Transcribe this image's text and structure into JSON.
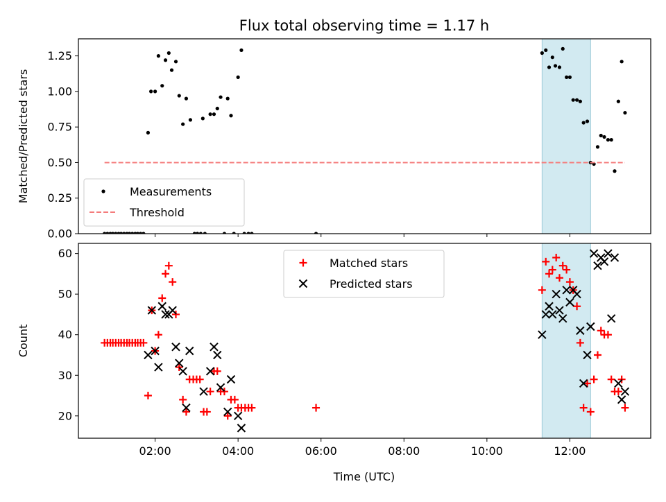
{
  "figure": {
    "title": "Flux total observing time = 1.17 h",
    "x_axis_label": "Time (UTC)"
  },
  "chart_data": [
    {
      "type": "scatter",
      "panel": "top",
      "ylabel": "Matched/Predicted stars",
      "xlim": [
        0.15,
        13.95
      ],
      "ylim": [
        0,
        1.37
      ],
      "yticks": [
        "0.00",
        "0.25",
        "0.50",
        "0.75",
        "1.00",
        "1.25"
      ],
      "xticks": [
        2,
        4,
        6,
        8,
        10,
        12
      ],
      "shaded_interval": [
        11.33,
        12.5
      ],
      "legend": {
        "placement": "lower-left",
        "items": [
          "Measurements",
          "Threshold"
        ]
      },
      "series": [
        {
          "name": "Measurements",
          "marker": "dot",
          "color": "#000000",
          "points": [
            [
              0.78,
              0
            ],
            [
              0.85,
              0
            ],
            [
              0.92,
              0
            ],
            [
              0.98,
              0
            ],
            [
              1.05,
              0
            ],
            [
              1.12,
              0
            ],
            [
              1.18,
              0
            ],
            [
              1.25,
              0
            ],
            [
              1.32,
              0
            ],
            [
              1.38,
              0
            ],
            [
              1.45,
              0
            ],
            [
              1.52,
              0
            ],
            [
              1.58,
              0
            ],
            [
              1.65,
              0
            ],
            [
              1.72,
              0
            ],
            [
              1.83,
              0.71
            ],
            [
              1.9,
              1.0
            ],
            [
              2.0,
              1.0
            ],
            [
              2.08,
              1.25
            ],
            [
              2.17,
              1.04
            ],
            [
              2.25,
              1.22
            ],
            [
              2.33,
              1.27
            ],
            [
              2.4,
              1.15
            ],
            [
              2.5,
              1.21
            ],
            [
              2.58,
              0.97
            ],
            [
              2.67,
              0.77
            ],
            [
              2.75,
              0.95
            ],
            [
              2.85,
              0.8
            ],
            [
              2.95,
              0
            ],
            [
              3.02,
              0
            ],
            [
              3.1,
              0
            ],
            [
              3.2,
              0
            ],
            [
              3.15,
              0.81
            ],
            [
              3.33,
              0.84
            ],
            [
              3.42,
              0.84
            ],
            [
              3.5,
              0.88
            ],
            [
              3.58,
              0.96
            ],
            [
              3.67,
              0
            ],
            [
              3.75,
              0.95
            ],
            [
              3.83,
              0.83
            ],
            [
              3.9,
              0
            ],
            [
              4.0,
              1.1
            ],
            [
              4.08,
              1.29
            ],
            [
              4.15,
              0
            ],
            [
              4.25,
              0
            ],
            [
              4.33,
              0
            ],
            [
              5.88,
              0
            ],
            [
              11.33,
              1.27
            ],
            [
              11.42,
              1.29
            ],
            [
              11.5,
              1.17
            ],
            [
              11.58,
              1.24
            ],
            [
              11.65,
              1.18
            ],
            [
              11.75,
              1.17
            ],
            [
              11.83,
              1.3
            ],
            [
              11.92,
              1.1
            ],
            [
              12.0,
              1.1
            ],
            [
              12.08,
              0.94
            ],
            [
              12.17,
              0.94
            ],
            [
              12.25,
              0.93
            ],
            [
              12.33,
              0.78
            ],
            [
              12.42,
              0.79
            ],
            [
              12.5,
              0.5
            ],
            [
              12.58,
              0.49
            ],
            [
              12.67,
              0.61
            ],
            [
              12.75,
              0.69
            ],
            [
              12.83,
              0.68
            ],
            [
              12.92,
              0.66
            ],
            [
              13.0,
              0.66
            ],
            [
              13.08,
              0.44
            ],
            [
              13.17,
              0.93
            ],
            [
              13.25,
              1.21
            ],
            [
              13.33,
              0.85
            ]
          ]
        },
        {
          "name": "Threshold",
          "style": "dashed",
          "color": "#f47c7c",
          "x": [
            0.78,
            13.33
          ],
          "y": [
            0.5,
            0.5
          ]
        }
      ]
    },
    {
      "type": "scatter",
      "panel": "bottom",
      "xlabel": "Time (UTC)",
      "ylabel": "Count",
      "xlim": [
        0.15,
        13.95
      ],
      "ylim": [
        14.5,
        62.5
      ],
      "yticks": [
        "20",
        "30",
        "40",
        "50",
        "60"
      ],
      "xticks": [
        "02:00",
        "04:00",
        "06:00",
        "08:00",
        "10:00",
        "12:00"
      ],
      "xtick_values": [
        2,
        4,
        6,
        8,
        10,
        12
      ],
      "shaded_interval": [
        11.33,
        12.5
      ],
      "legend": {
        "placement": "upper-center",
        "items": [
          "Matched stars",
          "Predicted stars"
        ]
      },
      "series": [
        {
          "name": "Matched stars",
          "marker": "plus",
          "color": "#ff0000",
          "points": [
            [
              0.78,
              38
            ],
            [
              0.85,
              38
            ],
            [
              0.92,
              38
            ],
            [
              0.98,
              38
            ],
            [
              1.05,
              38
            ],
            [
              1.12,
              38
            ],
            [
              1.18,
              38
            ],
            [
              1.25,
              38
            ],
            [
              1.32,
              38
            ],
            [
              1.38,
              38
            ],
            [
              1.45,
              38
            ],
            [
              1.52,
              38
            ],
            [
              1.58,
              38
            ],
            [
              1.65,
              38
            ],
            [
              1.72,
              38
            ],
            [
              1.83,
              25
            ],
            [
              1.92,
              46
            ],
            [
              2.0,
              36
            ],
            [
              2.08,
              40
            ],
            [
              2.17,
              49
            ],
            [
              2.25,
              55
            ],
            [
              2.33,
              57
            ],
            [
              2.42,
              53
            ],
            [
              2.5,
              45
            ],
            [
              2.58,
              32
            ],
            [
              2.67,
              24
            ],
            [
              2.75,
              21
            ],
            [
              2.83,
              29
            ],
            [
              2.92,
              29
            ],
            [
              3.0,
              29
            ],
            [
              3.08,
              29
            ],
            [
              3.17,
              21
            ],
            [
              3.25,
              21
            ],
            [
              3.33,
              26
            ],
            [
              3.42,
              31
            ],
            [
              3.5,
              31
            ],
            [
              3.58,
              26
            ],
            [
              3.67,
              26
            ],
            [
              3.75,
              20
            ],
            [
              3.83,
              24
            ],
            [
              3.92,
              24
            ],
            [
              4.0,
              22
            ],
            [
              4.08,
              22
            ],
            [
              4.17,
              22
            ],
            [
              4.25,
              22
            ],
            [
              4.33,
              22
            ],
            [
              5.88,
              22
            ],
            [
              11.33,
              51
            ],
            [
              11.42,
              58
            ],
            [
              11.5,
              55
            ],
            [
              11.58,
              56
            ],
            [
              11.67,
              59
            ],
            [
              11.75,
              54
            ],
            [
              11.83,
              57
            ],
            [
              11.92,
              56
            ],
            [
              12.0,
              53
            ],
            [
              12.08,
              51
            ],
            [
              12.17,
              47
            ],
            [
              12.25,
              38
            ],
            [
              12.33,
              22
            ],
            [
              12.42,
              28
            ],
            [
              12.5,
              21
            ],
            [
              12.58,
              29
            ],
            [
              12.67,
              35
            ],
            [
              12.75,
              41
            ],
            [
              12.83,
              40
            ],
            [
              12.92,
              40
            ],
            [
              13.0,
              29
            ],
            [
              13.08,
              26
            ],
            [
              13.17,
              26
            ],
            [
              13.25,
              29
            ],
            [
              13.33,
              22
            ]
          ]
        },
        {
          "name": "Predicted stars",
          "marker": "x",
          "color": "#000000",
          "points": [
            [
              1.83,
              35
            ],
            [
              1.92,
              46
            ],
            [
              2.0,
              36
            ],
            [
              2.08,
              32
            ],
            [
              2.17,
              47
            ],
            [
              2.25,
              45
            ],
            [
              2.33,
              45
            ],
            [
              2.42,
              46
            ],
            [
              2.5,
              37
            ],
            [
              2.58,
              33
            ],
            [
              2.67,
              31
            ],
            [
              2.75,
              22
            ],
            [
              2.83,
              36
            ],
            [
              3.17,
              26
            ],
            [
              3.33,
              31
            ],
            [
              3.42,
              37
            ],
            [
              3.5,
              35
            ],
            [
              3.58,
              27
            ],
            [
              3.75,
              21
            ],
            [
              3.83,
              29
            ],
            [
              4.0,
              20
            ],
            [
              4.08,
              17
            ],
            [
              11.33,
              40
            ],
            [
              11.42,
              45
            ],
            [
              11.5,
              47
            ],
            [
              11.58,
              45
            ],
            [
              11.67,
              50
            ],
            [
              11.75,
              46
            ],
            [
              11.83,
              44
            ],
            [
              11.92,
              51
            ],
            [
              12.0,
              48
            ],
            [
              12.08,
              51
            ],
            [
              12.17,
              50
            ],
            [
              12.25,
              41
            ],
            [
              12.33,
              28
            ],
            [
              12.42,
              35
            ],
            [
              12.5,
              42
            ],
            [
              12.58,
              60
            ],
            [
              12.67,
              57
            ],
            [
              12.75,
              59
            ],
            [
              12.83,
              58
            ],
            [
              12.92,
              60
            ],
            [
              13.0,
              44
            ],
            [
              13.08,
              59
            ],
            [
              13.17,
              28
            ],
            [
              13.25,
              24
            ],
            [
              13.33,
              26
            ]
          ]
        }
      ]
    }
  ]
}
